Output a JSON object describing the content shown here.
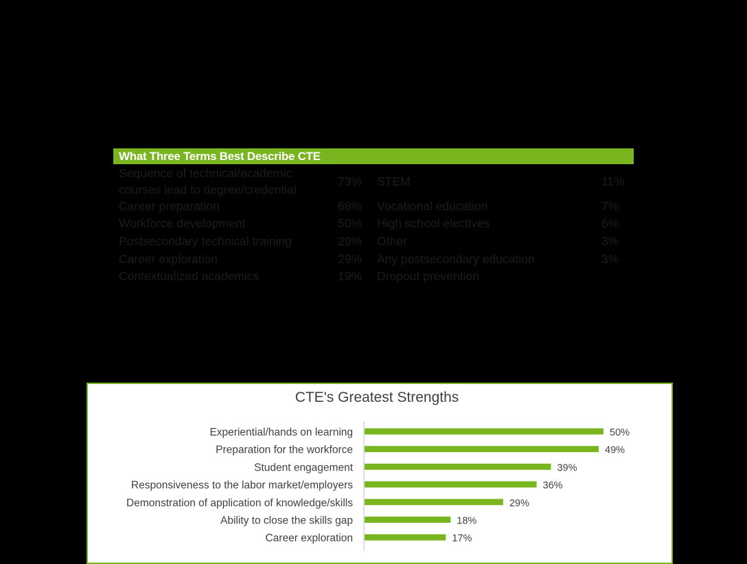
{
  "terms_table": {
    "title": "What Three Terms Best Describe CTE",
    "left_column": [
      {
        "label_lines": [
          "Sequence of technical/academic",
          "courses lead to degree/credential"
        ],
        "value": "73%"
      },
      {
        "label_lines": [
          "Career preparation"
        ],
        "value": "68%"
      },
      {
        "label_lines": [
          "Workforce development"
        ],
        "value": "50%"
      },
      {
        "label_lines": [
          "Postsecondary technical training"
        ],
        "value": "29%"
      },
      {
        "label_lines": [
          "Career exploration"
        ],
        "value": "29%"
      },
      {
        "label_lines": [
          "Contextualized academics"
        ],
        "value": "19%"
      }
    ],
    "right_column": [
      {
        "label": "STEM",
        "value": "11%"
      },
      {
        "label": "Vocational education",
        "value": "7%"
      },
      {
        "label": "High school electives",
        "value": "6%"
      },
      {
        "label": "Other",
        "value": "3%"
      },
      {
        "label": "Any postsecondary education",
        "value": "3%"
      },
      {
        "label": "Dropout prevention",
        "value": ""
      }
    ],
    "header_color": "#78b51f"
  },
  "chart_data": {
    "type": "bar",
    "orientation": "horizontal",
    "title": "CTE's Greatest Strengths",
    "categories": [
      "Experiential/hands on learning",
      "Preparation for the workforce",
      "Student engagement",
      "Responsiveness to the labor market/employers",
      "Demonstration of application of knowledge/skills",
      "Ability to close the skills gap",
      "Career exploration"
    ],
    "values": [
      50,
      49,
      39,
      36,
      29,
      18,
      17
    ],
    "data_labels": [
      "50%",
      "49%",
      "39%",
      "36%",
      "29%",
      "18%",
      "17%"
    ],
    "xlim": [
      0,
      50
    ],
    "grid": false,
    "legend": "none",
    "bar_color": "#78b51f"
  }
}
